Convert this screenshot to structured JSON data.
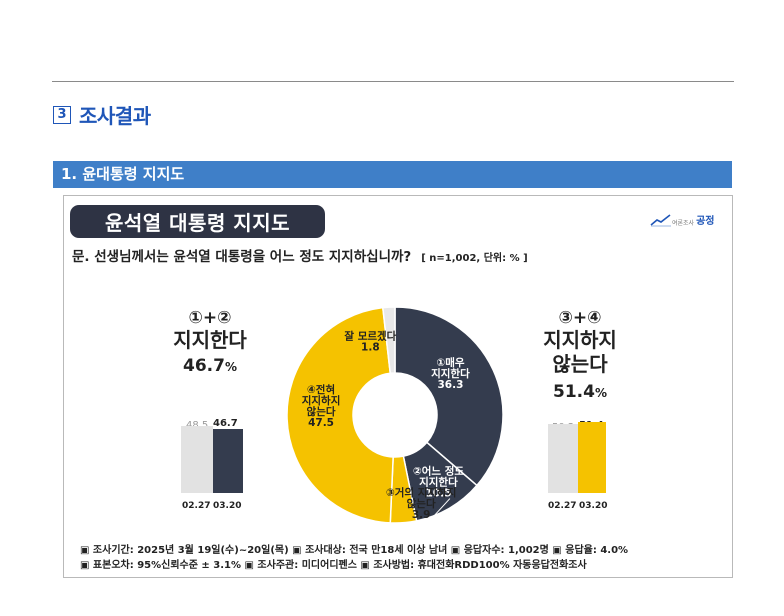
{
  "section": {
    "num": "3",
    "title": "조사결과"
  },
  "subsection": {
    "title": "1. 윤대통령 지지도"
  },
  "card": {
    "title": "윤석열 대통령 지지도",
    "logo_small": "여론조사",
    "logo_main": "공정",
    "question": "문. 선생님께서는 윤석열 대통령을 어느 정도 지지하십니까?",
    "meta": "[ n=1,002, 단위: % ]"
  },
  "left": {
    "circ": "①+②",
    "label": "지지한다",
    "pct": "46.7",
    "pct_unit": "%"
  },
  "right": {
    "circ": "③+④",
    "label1": "지지하지",
    "label2": "않는다",
    "pct": "51.4",
    "pct_unit": "%"
  },
  "colors": {
    "support": "#343c4e",
    "oppose": "#f5c200",
    "prev": "#e2e2e2",
    "unknown": "#e8e8e8"
  },
  "chart_data": [
    {
      "type": "pie",
      "categories": [
        "①매우 지지한다",
        "②어느 정도 지지한다",
        "③거의 지지하지 않는다",
        "④전혀 지지하지 않는다",
        "잘 모르겠다"
      ],
      "values": [
        36.3,
        10.5,
        3.9,
        47.5,
        1.8
      ],
      "labels": [
        {
          "l1": "①매우",
          "l2": "지지한다",
          "v": "36.3"
        },
        {
          "l1": "②어느 정도",
          "l2": "지지한다",
          "v": "10.5"
        },
        {
          "l1": "③거의 지지하지",
          "l2": "않는다",
          "v": "3.9"
        },
        {
          "l1": "④전혀",
          "l2": "지지하지",
          "l3": "않는다",
          "v": "47.5"
        },
        {
          "l1": "잘 모르겠다",
          "v": "1.8"
        }
      ]
    },
    {
      "type": "bar",
      "categories": [
        "02.27",
        "03.20"
      ],
      "values": [
        48.5,
        46.7
      ]
    },
    {
      "type": "bar",
      "categories": [
        "02.27",
        "03.20"
      ],
      "values": [
        50.2,
        51.4
      ]
    }
  ],
  "footer": {
    "line1": "▣ 조사기간: 2025년 3월 19일(수)~20일(목)   ▣ 조사대상: 전국 만18세 이상 남녀   ▣ 응답자수: 1,002명   ▣ 응답율: 4.0%",
    "line2": "▣ 표본오차: 95%신뢰수준 ± 3.1%     ▣ 조사주관: 미디어디펜스      ▣ 조사방법: 휴대전화RDD100% 자동응답전화조사"
  }
}
